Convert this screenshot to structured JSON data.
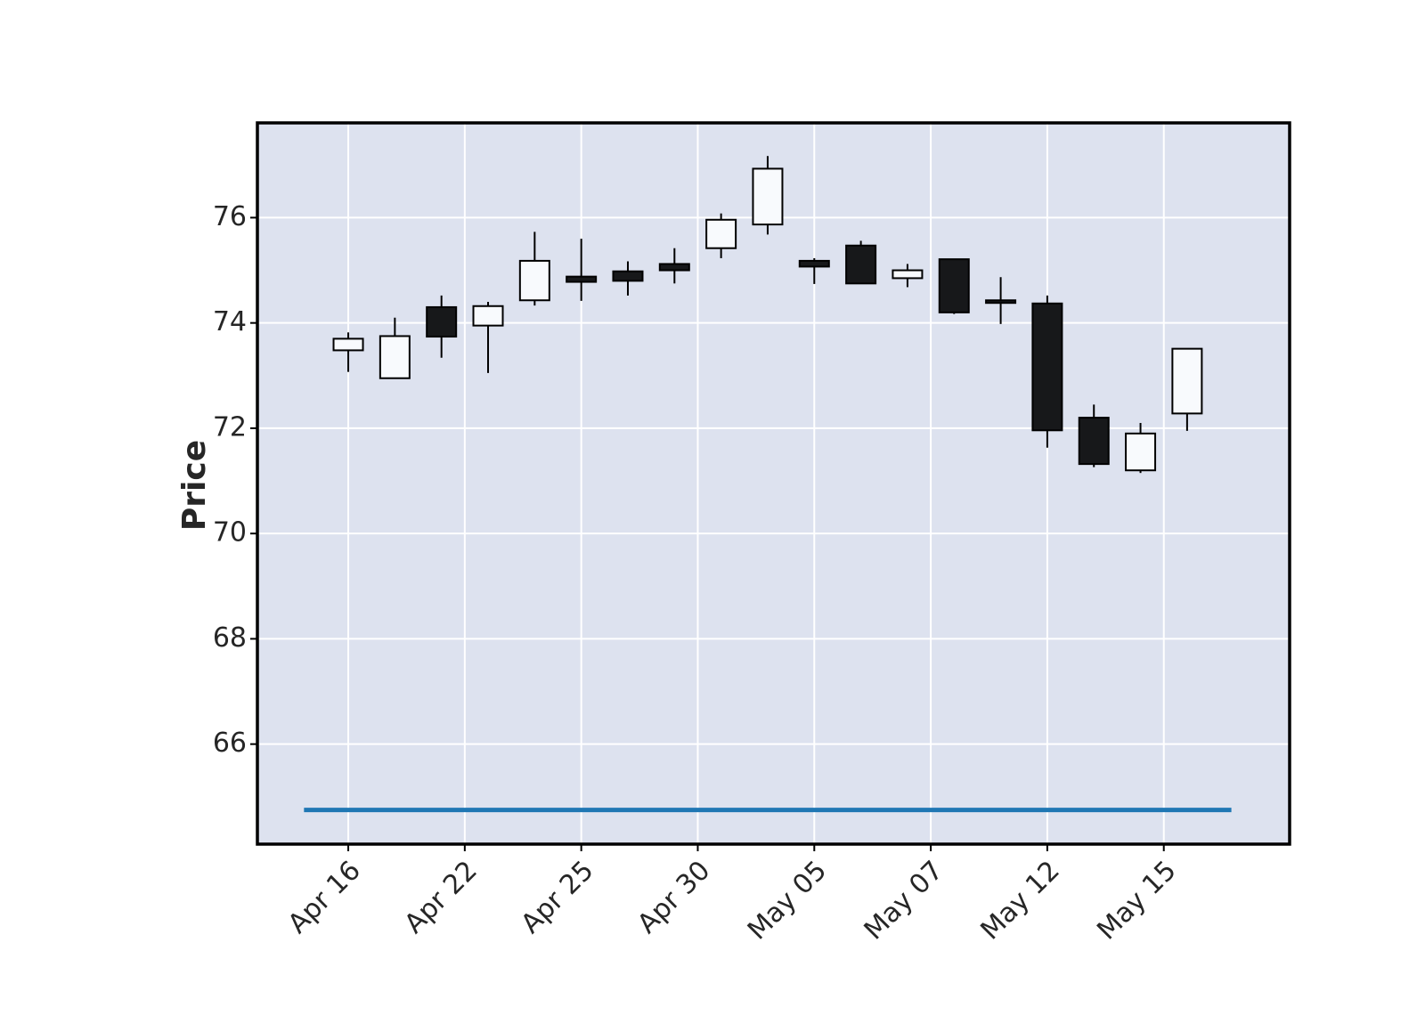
{
  "chart_data": {
    "type": "candlestick",
    "title": "",
    "xlabel": "",
    "ylabel": "Price",
    "ylim": [
      64.1,
      77.8
    ],
    "yticks": [
      66,
      68,
      70,
      72,
      74,
      76
    ],
    "xtick_labels": [
      "Apr 16",
      "Apr 22",
      "Apr 25",
      "Apr 30",
      "May 05",
      "May 07",
      "May 12",
      "May 15"
    ],
    "xtick_positions": [
      0,
      2.5,
      5,
      7.5,
      10,
      12.5,
      15,
      17.5
    ],
    "grid": true,
    "colors": {
      "background": "#dde2ef",
      "grid": "#ffffff",
      "up_fill": "#f8fafd",
      "down_fill": "#17181a",
      "edge": "#000000",
      "volume_line": "#1f77b4"
    },
    "candles": [
      {
        "open": 73.48,
        "high": 73.82,
        "low": 73.07,
        "close": 73.7
      },
      {
        "open": 72.95,
        "high": 74.1,
        "low": 72.95,
        "close": 73.75
      },
      {
        "open": 74.3,
        "high": 74.52,
        "low": 73.34,
        "close": 73.74
      },
      {
        "open": 73.95,
        "high": 74.4,
        "low": 73.05,
        "close": 74.32
      },
      {
        "open": 74.43,
        "high": 75.73,
        "low": 74.33,
        "close": 75.18
      },
      {
        "open": 74.88,
        "high": 75.6,
        "low": 74.42,
        "close": 74.78
      },
      {
        "open": 74.98,
        "high": 75.17,
        "low": 74.52,
        "close": 74.8
      },
      {
        "open": 75.12,
        "high": 75.42,
        "low": 74.75,
        "close": 75.0
      },
      {
        "open": 75.42,
        "high": 76.08,
        "low": 75.23,
        "close": 75.96
      },
      {
        "open": 75.87,
        "high": 77.17,
        "low": 75.68,
        "close": 76.93
      },
      {
        "open": 75.18,
        "high": 75.23,
        "low": 74.74,
        "close": 75.07
      },
      {
        "open": 75.47,
        "high": 75.56,
        "low": 74.75,
        "close": 74.75
      },
      {
        "open": 74.85,
        "high": 75.12,
        "low": 74.68,
        "close": 75.0
      },
      {
        "open": 75.21,
        "high": 75.21,
        "low": 74.17,
        "close": 74.2
      },
      {
        "open": 74.43,
        "high": 74.87,
        "low": 73.98,
        "close": 74.38
      },
      {
        "open": 74.37,
        "high": 74.52,
        "low": 71.63,
        "close": 71.96
      },
      {
        "open": 72.2,
        "high": 72.45,
        "low": 71.26,
        "close": 71.32
      },
      {
        "open": 71.2,
        "high": 72.1,
        "low": 71.15,
        "close": 71.9
      },
      {
        "open": 72.28,
        "high": 73.51,
        "low": 71.95,
        "close": 73.51
      }
    ],
    "volume_series": {
      "y": 64.75,
      "x_range": [
        -0.95,
        18.95
      ]
    }
  }
}
